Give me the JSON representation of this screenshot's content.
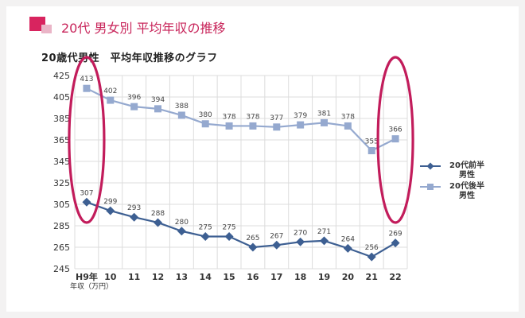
{
  "header": {
    "title": "20代 男女別 平均年収の推移"
  },
  "chart_data": {
    "type": "line",
    "title": "20歳代男性　平均年収推移のグラフ",
    "xlabel": "",
    "ylabel": "",
    "unit_label": "年収（万円）",
    "categories": [
      "H9年",
      "10",
      "11",
      "12",
      "13",
      "14",
      "15",
      "16",
      "17",
      "18",
      "19",
      "20",
      "21",
      "22"
    ],
    "ylim": [
      245,
      425
    ],
    "yticks": [
      245,
      265,
      285,
      305,
      325,
      345,
      365,
      385,
      405,
      425
    ],
    "grid": true,
    "legend_position": "right",
    "series": [
      {
        "name": "20代後半男性",
        "color": "#95a9cf",
        "marker": "square",
        "values": [
          413,
          402,
          396,
          394,
          388,
          380,
          378,
          378,
          377,
          379,
          381,
          378,
          355,
          366
        ]
      },
      {
        "name": "20代前半男性",
        "color": "#3d5f92",
        "marker": "diamond",
        "values": [
          307,
          299,
          293,
          288,
          280,
          275,
          275,
          265,
          267,
          270,
          271,
          264,
          256,
          269
        ]
      }
    ],
    "annotations": [
      {
        "type": "ellipse",
        "around_category": "H9年",
        "color": "#c21c5b"
      },
      {
        "type": "ellipse",
        "around_category": "22",
        "color": "#c21c5b"
      }
    ]
  },
  "legend": [
    {
      "line1": "20代前半",
      "line2": "男性",
      "color": "#3d5f92",
      "marker": "diamond"
    },
    {
      "line1": "20代後半",
      "line2": "男性",
      "color": "#95a9cf",
      "marker": "square"
    }
  ]
}
